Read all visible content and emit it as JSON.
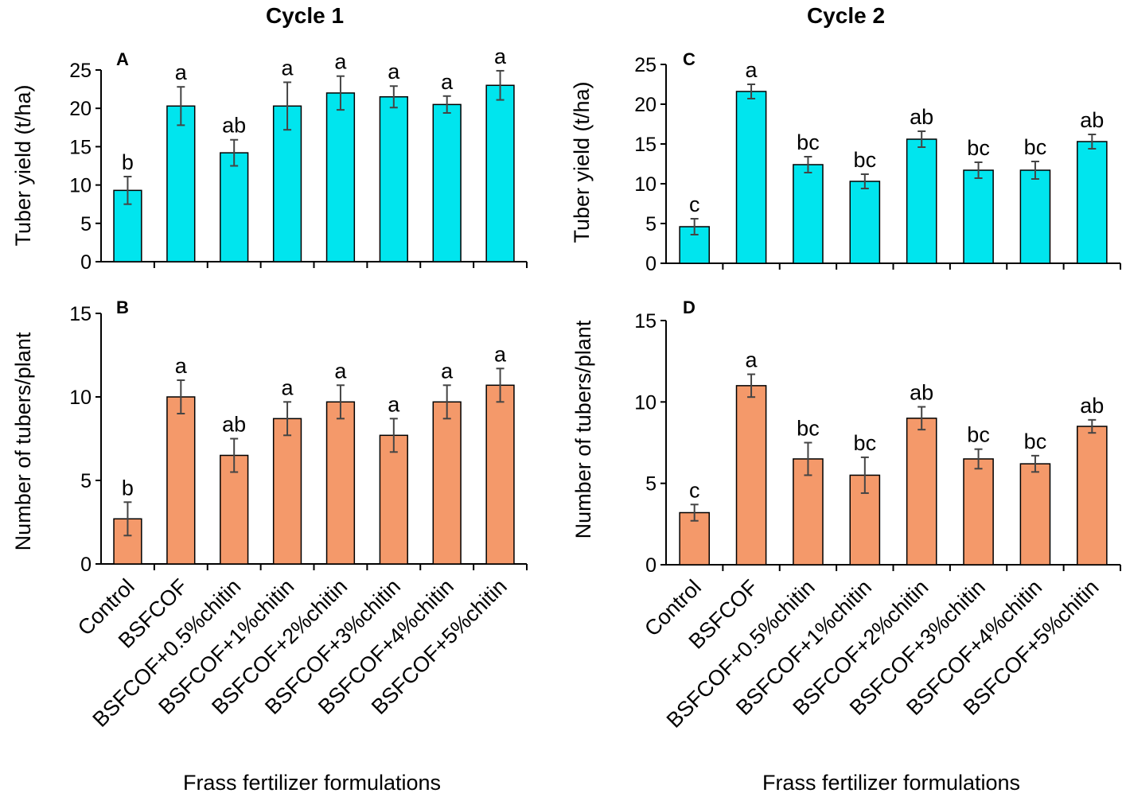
{
  "figure": {
    "cycle_titles": [
      "Cycle 1",
      "Cycle 2"
    ],
    "x_axis_label": "Frass fertilizer formulations",
    "categories": [
      "Control",
      "BSFCOF",
      "BSFCOF+0.5%chitin",
      "BSFCOF+1%chitin",
      "BSFCOF+2%chitin",
      "BSFCOF+3%chitin",
      "BSFCOF+4%chitin",
      "BSFCOF+5%chitin"
    ]
  },
  "chart_data": [
    {
      "panel": "A",
      "type": "bar",
      "title": "Cycle 1",
      "xlabel": "Frass fertilizer formulations",
      "ylabel": "Tuber yield (t/ha)",
      "ylim": [
        0,
        25
      ],
      "yticks": [
        0,
        5,
        10,
        15,
        20,
        25
      ],
      "bar_color": "#00E5EE",
      "categories": [
        "Control",
        "BSFCOF",
        "BSFCOF+0.5%chitin",
        "BSFCOF+1%chitin",
        "BSFCOF+2%chitin",
        "BSFCOF+3%chitin",
        "BSFCOF+4%chitin",
        "BSFCOF+5%chitin"
      ],
      "values": [
        9.3,
        20.3,
        14.2,
        20.3,
        22.0,
        21.5,
        20.5,
        23.0
      ],
      "errors": [
        1.8,
        2.5,
        1.7,
        3.1,
        2.2,
        1.4,
        1.1,
        1.9
      ],
      "significance": [
        "b",
        "a",
        "ab",
        "a",
        "a",
        "a",
        "a",
        "a"
      ]
    },
    {
      "panel": "B",
      "type": "bar",
      "title": "Cycle 1",
      "xlabel": "Frass fertilizer formulations",
      "ylabel": "Number of tubers/plant",
      "ylim": [
        0,
        15
      ],
      "yticks": [
        0,
        5,
        10,
        15
      ],
      "bar_color": "#F4996A",
      "categories": [
        "Control",
        "BSFCOF",
        "BSFCOF+0.5%chitin",
        "BSFCOF+1%chitin",
        "BSFCOF+2%chitin",
        "BSFCOF+3%chitin",
        "BSFCOF+4%chitin",
        "BSFCOF+5%chitin"
      ],
      "values": [
        2.7,
        10.0,
        6.5,
        8.7,
        9.7,
        7.7,
        9.7,
        10.7
      ],
      "errors": [
        1.0,
        1.0,
        1.0,
        1.0,
        1.0,
        1.0,
        1.0,
        1.0
      ],
      "significance": [
        "b",
        "a",
        "ab",
        "a",
        "a",
        "a",
        "a",
        "a"
      ]
    },
    {
      "panel": "C",
      "type": "bar",
      "title": "Cycle 2",
      "xlabel": "Frass fertilizer formulations",
      "ylabel": "Tuber yield (t/ha)",
      "ylim": [
        0,
        25
      ],
      "yticks": [
        0,
        5,
        10,
        15,
        20,
        25
      ],
      "bar_color": "#00E5EE",
      "categories": [
        "Control",
        "BSFCOF",
        "BSFCOF+0.5%chitin",
        "BSFCOF+1%chitin",
        "BSFCOF+2%chitin",
        "BSFCOF+3%chitin",
        "BSFCOF+4%chitin",
        "BSFCOF+5%chitin"
      ],
      "values": [
        4.6,
        21.6,
        12.4,
        10.3,
        15.6,
        11.7,
        11.7,
        15.3
      ],
      "errors": [
        1.0,
        0.9,
        1.0,
        0.9,
        1.0,
        1.0,
        1.1,
        0.9
      ],
      "significance": [
        "c",
        "a",
        "bc",
        "bc",
        "ab",
        "bc",
        "bc",
        "ab"
      ]
    },
    {
      "panel": "D",
      "type": "bar",
      "title": "Cycle 2",
      "xlabel": "Frass fertilizer formulations",
      "ylabel": "Number of tubers/plant",
      "ylim": [
        0,
        15
      ],
      "yticks": [
        0,
        5,
        10,
        15
      ],
      "bar_color": "#F4996A",
      "categories": [
        "Control",
        "BSFCOF",
        "BSFCOF+0.5%chitin",
        "BSFCOF+1%chitin",
        "BSFCOF+2%chitin",
        "BSFCOF+3%chitin",
        "BSFCOF+4%chitin",
        "BSFCOF+5%chitin"
      ],
      "values": [
        3.2,
        11.0,
        6.5,
        5.5,
        9.0,
        6.5,
        6.2,
        8.5
      ],
      "errors": [
        0.5,
        0.7,
        1.0,
        1.1,
        0.7,
        0.6,
        0.5,
        0.4
      ],
      "significance": [
        "c",
        "a",
        "bc",
        "bc",
        "ab",
        "bc",
        "bc",
        "ab"
      ]
    }
  ]
}
